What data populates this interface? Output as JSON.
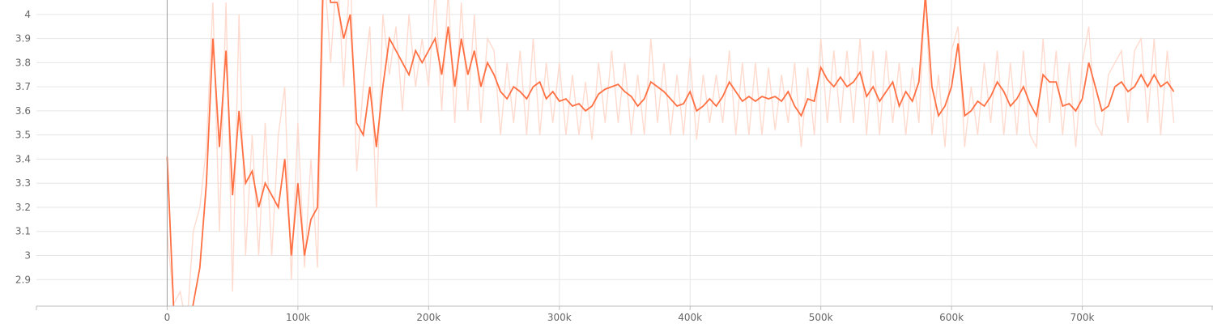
{
  "chart_data": {
    "type": "line",
    "title": "",
    "xlabel": "",
    "ylabel": "",
    "xlim": [
      -100000,
      800000
    ],
    "ylim": [
      2.79,
      4.06
    ],
    "x_ticks": [
      0,
      100000,
      200000,
      300000,
      400000,
      500000,
      600000,
      700000
    ],
    "x_tick_labels": [
      "0",
      "100k",
      "200k",
      "300k",
      "400k",
      "500k",
      "600k",
      "700k"
    ],
    "y_ticks": [
      2.9,
      3.0,
      3.1,
      3.2,
      3.3,
      3.4,
      3.5,
      3.6,
      3.7,
      3.8,
      3.9,
      4.0
    ],
    "y_tick_labels": [
      "2.9",
      "3",
      "3.1",
      "3.2",
      "3.3",
      "3.4",
      "3.5",
      "3.6",
      "3.7",
      "3.8",
      "3.9",
      "4"
    ],
    "grid": true,
    "colors": {
      "smoothed": "#ff7043",
      "raw": "#ffd5c7"
    },
    "series": [
      {
        "role": "smoothed",
        "x": [
          0,
          5000,
          10000,
          15000,
          20000,
          25000,
          30000,
          35000,
          40000,
          45000,
          50000,
          55000,
          60000,
          65000,
          70000,
          75000,
          80000,
          85000,
          90000,
          95000,
          100000,
          105000,
          110000,
          115000,
          120000,
          125000,
          130000,
          135000,
          140000,
          145000,
          150000,
          155000,
          160000,
          165000,
          170000,
          175000,
          180000,
          185000,
          190000,
          195000,
          200000,
          205000,
          210000,
          215000,
          220000,
          225000,
          230000,
          235000,
          240000,
          245000,
          250000,
          255000,
          260000,
          265000,
          270000,
          275000,
          280000,
          285000,
          290000,
          295000,
          300000,
          305000,
          310000,
          315000,
          320000,
          325000,
          330000,
          335000,
          340000,
          345000,
          350000,
          355000,
          360000,
          365000,
          370000,
          375000,
          380000,
          385000,
          390000,
          395000,
          400000,
          405000,
          410000,
          415000,
          420000,
          425000,
          430000,
          435000,
          440000,
          445000,
          450000,
          455000,
          460000,
          465000,
          470000,
          475000,
          480000,
          485000,
          490000,
          495000,
          500000,
          505000,
          510000,
          515000,
          520000,
          525000,
          530000,
          535000,
          540000,
          545000,
          550000,
          555000,
          560000,
          565000,
          570000,
          575000,
          580000,
          585000,
          590000,
          595000,
          600000,
          605000,
          610000,
          615000,
          620000,
          625000,
          630000,
          635000,
          640000,
          645000,
          650000,
          655000,
          660000,
          665000,
          670000,
          675000,
          680000,
          685000,
          690000,
          695000,
          700000,
          705000,
          710000,
          715000,
          720000,
          725000,
          730000,
          735000,
          740000,
          745000,
          750000,
          755000,
          760000,
          765000,
          770000
        ],
        "y": [
          3.41,
          2.78,
          2.7,
          2.66,
          2.8,
          2.95,
          3.3,
          3.9,
          3.45,
          3.85,
          3.25,
          3.6,
          3.3,
          3.35,
          3.2,
          3.3,
          3.25,
          3.2,
          3.4,
          3.0,
          3.3,
          3.0,
          3.15,
          3.2,
          4.3,
          4.05,
          4.05,
          3.9,
          4.0,
          3.55,
          3.5,
          3.7,
          3.45,
          3.7,
          3.9,
          3.85,
          3.8,
          3.75,
          3.85,
          3.8,
          3.85,
          3.9,
          3.75,
          3.95,
          3.7,
          3.9,
          3.75,
          3.85,
          3.7,
          3.8,
          3.75,
          3.68,
          3.65,
          3.7,
          3.68,
          3.65,
          3.7,
          3.72,
          3.65,
          3.68,
          3.64,
          3.65,
          3.62,
          3.63,
          3.6,
          3.62,
          3.67,
          3.69,
          3.7,
          3.71,
          3.68,
          3.66,
          3.62,
          3.65,
          3.72,
          3.7,
          3.68,
          3.65,
          3.62,
          3.63,
          3.68,
          3.6,
          3.62,
          3.65,
          3.62,
          3.66,
          3.72,
          3.68,
          3.64,
          3.66,
          3.64,
          3.66,
          3.65,
          3.66,
          3.64,
          3.68,
          3.62,
          3.58,
          3.65,
          3.64,
          3.78,
          3.73,
          3.7,
          3.74,
          3.7,
          3.72,
          3.76,
          3.66,
          3.7,
          3.64,
          3.68,
          3.72,
          3.62,
          3.68,
          3.64,
          3.72,
          4.08,
          3.7,
          3.58,
          3.62,
          3.7,
          3.88,
          3.58,
          3.6,
          3.64,
          3.62,
          3.66,
          3.72,
          3.68,
          3.62,
          3.65,
          3.7,
          3.63,
          3.58,
          3.75,
          3.72,
          3.72,
          3.62,
          3.63,
          3.6,
          3.65,
          3.8,
          3.7,
          3.6,
          3.62,
          3.7,
          3.72,
          3.68,
          3.7,
          3.75,
          3.7,
          3.75,
          3.7,
          3.72,
          3.68
        ]
      },
      {
        "role": "raw",
        "x": [
          0,
          5000,
          10000,
          15000,
          20000,
          25000,
          30000,
          35000,
          40000,
          45000,
          50000,
          55000,
          60000,
          65000,
          70000,
          75000,
          80000,
          85000,
          90000,
          95000,
          100000,
          105000,
          110000,
          115000,
          120000,
          125000,
          130000,
          135000,
          140000,
          145000,
          150000,
          155000,
          160000,
          165000,
          170000,
          175000,
          180000,
          185000,
          190000,
          195000,
          200000,
          205000,
          210000,
          215000,
          220000,
          225000,
          230000,
          235000,
          240000,
          245000,
          250000,
          255000,
          260000,
          265000,
          270000,
          275000,
          280000,
          285000,
          290000,
          295000,
          300000,
          305000,
          310000,
          315000,
          320000,
          325000,
          330000,
          335000,
          340000,
          345000,
          350000,
          355000,
          360000,
          365000,
          370000,
          375000,
          380000,
          385000,
          390000,
          395000,
          400000,
          405000,
          410000,
          415000,
          420000,
          425000,
          430000,
          435000,
          440000,
          445000,
          450000,
          455000,
          460000,
          465000,
          470000,
          475000,
          480000,
          485000,
          490000,
          495000,
          500000,
          505000,
          510000,
          515000,
          520000,
          525000,
          530000,
          535000,
          540000,
          545000,
          550000,
          555000,
          560000,
          565000,
          570000,
          575000,
          580000,
          585000,
          590000,
          595000,
          600000,
          605000,
          610000,
          615000,
          620000,
          625000,
          630000,
          635000,
          640000,
          645000,
          650000,
          655000,
          660000,
          665000,
          670000,
          675000,
          680000,
          685000,
          690000,
          695000,
          700000,
          705000,
          710000,
          715000,
          720000,
          725000,
          730000,
          735000,
          740000,
          745000,
          750000,
          755000,
          760000,
          765000,
          770000
        ],
        "y": [
          3.1,
          2.8,
          2.85,
          2.7,
          3.1,
          3.2,
          3.45,
          4.05,
          3.1,
          4.05,
          2.85,
          4.0,
          3.0,
          3.5,
          3.0,
          3.55,
          3.0,
          3.5,
          3.7,
          2.9,
          3.55,
          2.95,
          3.4,
          2.95,
          4.2,
          3.8,
          4.2,
          3.7,
          4.2,
          3.35,
          3.7,
          3.95,
          3.2,
          4.0,
          3.75,
          3.95,
          3.6,
          4.0,
          3.7,
          3.9,
          3.7,
          4.1,
          3.6,
          4.1,
          3.55,
          4.05,
          3.6,
          4.0,
          3.55,
          3.9,
          3.85,
          3.5,
          3.8,
          3.55,
          3.85,
          3.5,
          3.9,
          3.5,
          3.8,
          3.55,
          3.8,
          3.5,
          3.75,
          3.5,
          3.72,
          3.48,
          3.8,
          3.55,
          3.85,
          3.55,
          3.8,
          3.5,
          3.75,
          3.5,
          3.9,
          3.55,
          3.8,
          3.5,
          3.75,
          3.5,
          3.82,
          3.48,
          3.75,
          3.55,
          3.75,
          3.55,
          3.85,
          3.5,
          3.8,
          3.5,
          3.8,
          3.5,
          3.78,
          3.52,
          3.75,
          3.55,
          3.8,
          3.45,
          3.78,
          3.5,
          3.9,
          3.55,
          3.85,
          3.55,
          3.85,
          3.55,
          3.9,
          3.5,
          3.85,
          3.5,
          3.85,
          3.55,
          3.8,
          3.5,
          3.78,
          3.55,
          4.1,
          3.5,
          3.75,
          3.45,
          3.85,
          3.95,
          3.45,
          3.7,
          3.5,
          3.8,
          3.55,
          3.85,
          3.5,
          3.8,
          3.5,
          3.85,
          3.5,
          3.45,
          3.9,
          3.55,
          3.85,
          3.5,
          3.8,
          3.45,
          3.8,
          3.95,
          3.55,
          3.5,
          3.75,
          3.8,
          3.85,
          3.55,
          3.85,
          3.9,
          3.55,
          3.9,
          3.5,
          3.85,
          3.55
        ]
      }
    ]
  }
}
